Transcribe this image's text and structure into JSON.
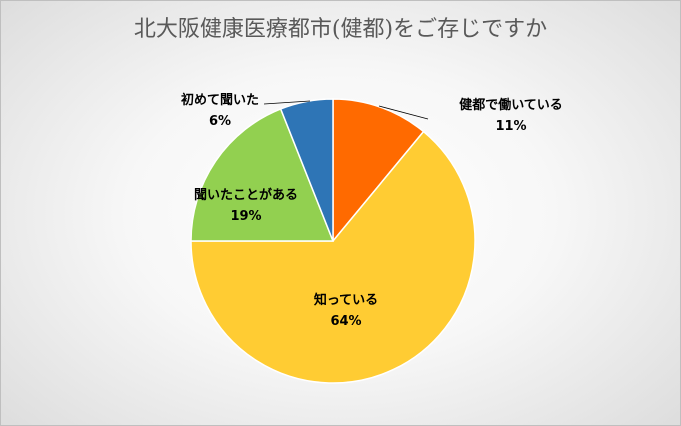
{
  "chart_data": {
    "type": "pie",
    "title": "北大阪健康医療都市(健都)をご存じですか",
    "slices": [
      {
        "label": "健都で働いている",
        "value": 11,
        "value_label": "11%",
        "color": "#ff6a00"
      },
      {
        "label": "知っている",
        "value": 64,
        "value_label": "64%",
        "color": "#ffcc33"
      },
      {
        "label": "聞いたことがある",
        "value": 19,
        "value_label": "19%",
        "color": "#92d050"
      },
      {
        "label": "初めて聞いた",
        "value": 6,
        "value_label": "6%",
        "color": "#2e75b6"
      }
    ],
    "start": "12 o'clock",
    "direction": "clockwise",
    "legend": "none",
    "labels": "category name and percentage beside each slice"
  }
}
